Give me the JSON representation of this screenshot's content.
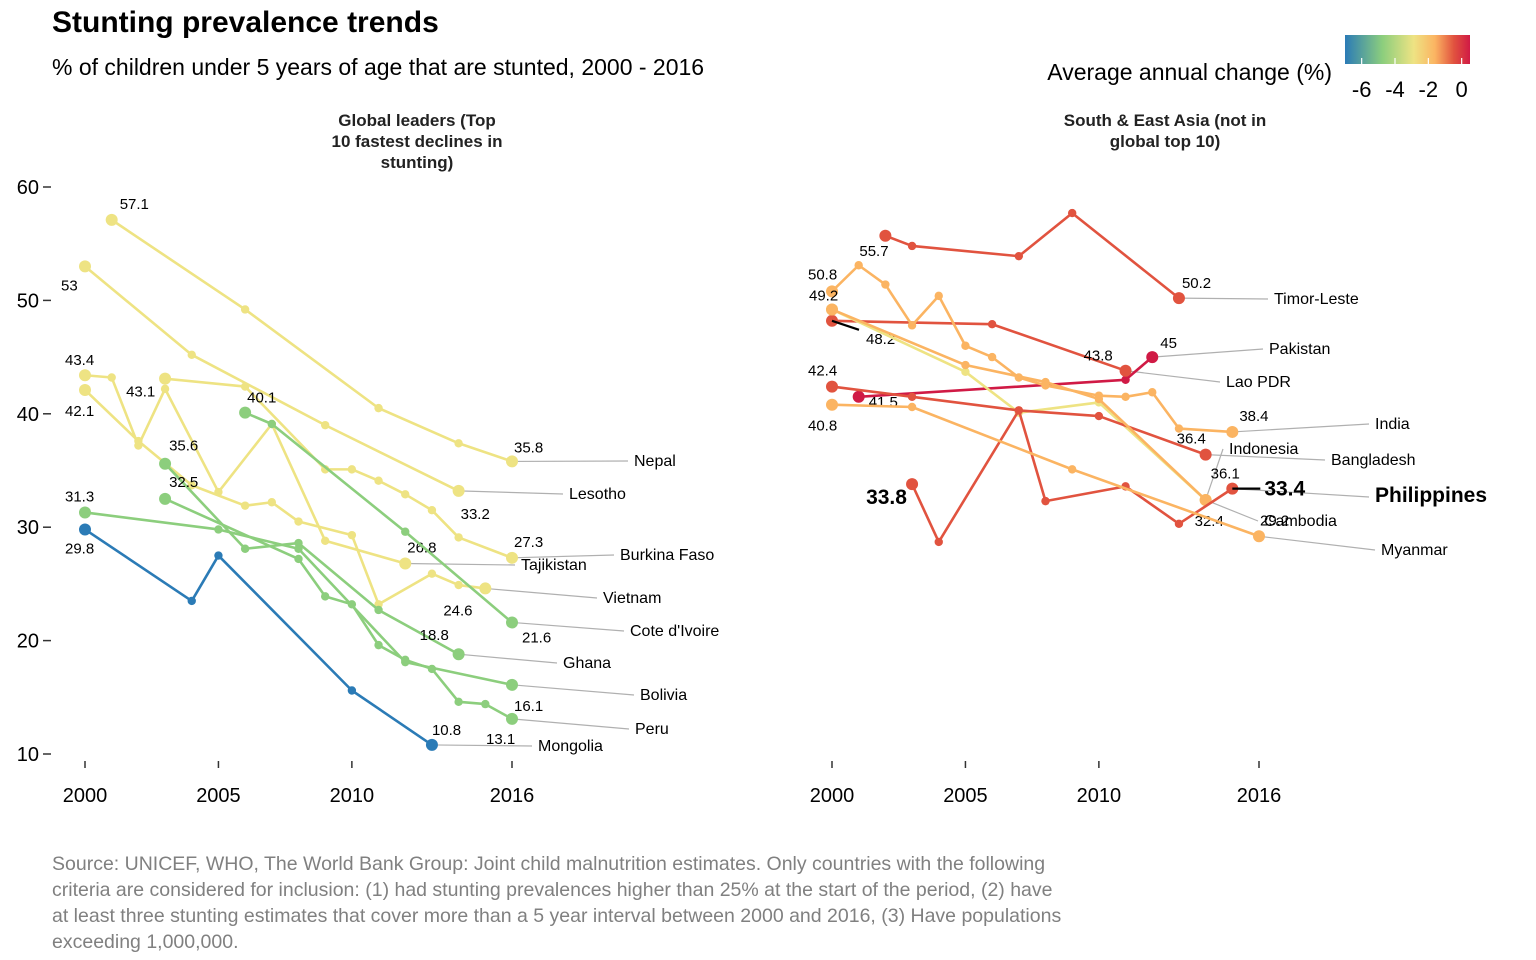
{
  "chart_data": {
    "type": "line",
    "title": "Stunting prevalence trends",
    "subtitle": "% of children under 5 years of age that are stunted, 2000 - 2016",
    "legend": {
      "title": "Average annual change (%)",
      "ticks": [
        "-6",
        "-4",
        "-2",
        "0"
      ],
      "range": [
        -7,
        0.5
      ],
      "placement": "top-right",
      "colors": [
        "#2B7BB6",
        "#8CCE7D",
        "#EEE383",
        "#FBB462",
        "#E1533F",
        "#D01A45"
      ]
    },
    "x_ticks": [
      "2000",
      "2005",
      "2010",
      "2016"
    ],
    "x_tick_values": [
      2000,
      2005,
      2010,
      2016
    ],
    "ylim": [
      10,
      60
    ],
    "y_ticks": [
      "10",
      "20",
      "30",
      "40",
      "50",
      "60"
    ],
    "panels": [
      {
        "title": "Global leaders (Top 10 fastest declines in stunting)",
        "title_lines": [
          "Global leaders (Top",
          "10 fastest declines in",
          "stunting)"
        ],
        "series": [
          {
            "name": "Nepal",
            "color": "#EEE383",
            "x": [
              2001,
              2006,
              2011,
              2014,
              2016
            ],
            "y": [
              57.1,
              49.2,
              40.5,
              37.4,
              35.8
            ],
            "start_label": "57.1",
            "end_label": "35.8"
          },
          {
            "name": "Lesotho",
            "color": "#EEE383",
            "x": [
              2000,
              2004,
              2009,
              2014
            ],
            "y": [
              53,
              45.2,
              39,
              33.2
            ],
            "start_label": "53",
            "end_label": "33.2"
          },
          {
            "name": "Burkina Faso",
            "color": "#EEE383",
            "x": [
              2003,
              2006,
              2009,
              2010,
              2011,
              2012,
              2013,
              2014,
              2016
            ],
            "y": [
              43.1,
              42.4,
              35.1,
              35.1,
              34.1,
              32.9,
              31.5,
              29.1,
              27.3
            ],
            "start_label": "43.1",
            "end_label": "27.3"
          },
          {
            "name": "Tajikistan",
            "color": "#EEE383",
            "x": [
              2000,
              2001,
              2002,
              2003,
              2005,
              2007,
              2009,
              2012
            ],
            "y": [
              43.4,
              43.2,
              37.2,
              42.2,
              33.1,
              39.1,
              28.8,
              26.8
            ],
            "start_label": "43.4",
            "end_label": "26.8"
          },
          {
            "name": "Vietnam",
            "color": "#EEE383",
            "x": [
              2000,
              2002,
              2004,
              2006,
              2007,
              2008,
              2010,
              2011,
              2013,
              2014,
              2015
            ],
            "y": [
              42.1,
              37.6,
              33.7,
              31.9,
              32.2,
              30.5,
              29.3,
              23.2,
              25.9,
              24.9,
              24.6
            ],
            "start_label": "42.1",
            "end_label": "24.6"
          },
          {
            "name": "Cote d'Ivoire",
            "color": "#8CCE7D",
            "x": [
              2006,
              2007,
              2012,
              2016
            ],
            "y": [
              40.1,
              39.1,
              29.6,
              21.6
            ],
            "start_label": "40.1",
            "end_label": "21.6"
          },
          {
            "name": "Ghana",
            "color": "#8CCE7D",
            "x": [
              2003,
              2006,
              2008,
              2011,
              2014
            ],
            "y": [
              35.6,
              28.1,
              28.6,
              22.7,
              18.8
            ],
            "start_label": "35.6",
            "end_label": "18.8"
          },
          {
            "name": "Bolivia",
            "color": "#8CCE7D",
            "x": [
              2000,
              2005,
              2008,
              2012,
              2016
            ],
            "y": [
              31.3,
              29.8,
              28.1,
              18.1,
              16.1
            ],
            "start_label": "31.3",
            "end_label": "16.1"
          },
          {
            "name": "Peru",
            "color": "#8CCE7D",
            "x": [
              2003,
              2008,
              2009,
              2010,
              2011,
              2012,
              2013,
              2014,
              2015,
              2016
            ],
            "y": [
              32.5,
              27.2,
              23.9,
              23.2,
              19.6,
              18.3,
              17.5,
              14.6,
              14.4,
              13.1
            ],
            "start_label": "32.5",
            "end_label": "13.1"
          },
          {
            "name": "Mongolia",
            "color": "#2B7BB6",
            "x": [
              2000,
              2004,
              2005,
              2010,
              2013
            ],
            "y": [
              29.8,
              23.5,
              27.5,
              15.6,
              10.8
            ],
            "start_label": "29.8",
            "end_label": "10.8"
          }
        ]
      },
      {
        "title": "South & East Asia (not in global top 10)",
        "title_lines": [
          "South & East Asia (not in",
          "global top 10)"
        ],
        "series": [
          {
            "name": "Timor-Leste",
            "color": "#E1533F",
            "x": [
              2002,
              2003,
              2007,
              2009,
              2013
            ],
            "y": [
              55.7,
              54.8,
              53.9,
              57.7,
              50.2
            ],
            "start_label": "55.7",
            "end_label": "50.2"
          },
          {
            "name": "Pakistan",
            "color": "#D01A45",
            "x": [
              2001,
              2011,
              2012
            ],
            "y": [
              41.5,
              43.0,
              45
            ],
            "start_label": "41.5",
            "end_label": "45"
          },
          {
            "name": "Lao PDR",
            "color": "#E1533F",
            "x": [
              2000,
              2006,
              2011
            ],
            "y": [
              48.2,
              47.9,
              43.8
            ],
            "start_label": "48.2",
            "end_label": "43.8"
          },
          {
            "name": "India",
            "color": "#FBB462",
            "x": [
              2000,
              2001,
              2002,
              2003,
              2004,
              2005,
              2006,
              2007,
              2008,
              2010,
              2011,
              2012,
              2013,
              2015
            ],
            "y": [
              50.8,
              53.1,
              51.4,
              47.8,
              50.4,
              46.0,
              45.0,
              43.2,
              42.5,
              41.6,
              41.5,
              41.9,
              38.7,
              38.4
            ],
            "start_label": "50.8",
            "end_label": "38.4"
          },
          {
            "name": "Indonesia",
            "color": "#EEE383",
            "x": [
              2000,
              2005,
              2007,
              2010,
              2014
            ],
            "y": [
              49.2,
              43.7,
              40.1,
              41.0,
              32.4
            ],
            "start_label": "49.2",
            "end_label": "32.4"
          },
          {
            "name": "Bangladesh",
            "color": "#E1533F",
            "x": [
              2000,
              2003,
              2007,
              2010,
              2014
            ],
            "y": [
              42.4,
              41.5,
              40.3,
              39.8,
              36.4
            ],
            "start_label": "42.4",
            "end_label": "36.4"
          },
          {
            "name": "Cambodia",
            "color": "#FBB462",
            "x": [
              2000,
              2005,
              2008,
              2010,
              2014
            ],
            "y": [
              49.2,
              44.3,
              42.8,
              41.3,
              32.4
            ],
            "start_label": "49.2",
            "end_label": "32.4"
          },
          {
            "name": "Philippines",
            "color": "#E1533F",
            "x": [
              2003,
              2004,
              2007,
              2008,
              2011,
              2013,
              2015
            ],
            "y": [
              33.8,
              28.7,
              40.3,
              32.3,
              33.6,
              30.3,
              33.4
            ],
            "start_label": "33.8",
            "end_label": "33.4",
            "highlight": true
          },
          {
            "name": "Myanmar",
            "color": "#FBB462",
            "x": [
              2000,
              2003,
              2009,
              2016
            ],
            "y": [
              40.8,
              40.6,
              35.1,
              29.2
            ],
            "start_label": "40.8",
            "end_label": "29.2"
          }
        ]
      }
    ],
    "extra_value_labels": [
      "36.1"
    ],
    "source": "Source: UNICEF, WHO, The World Bank Group: Joint child malnutrition estimates. Only countries with the following criteria are considered for inclusion: (1) had stunting prevalences higher than 25% at the start of the period, (2) have at least three stunting estimates that cover more than a 5 year interval between 2000 and 2016, (3) Have populations exceeding 1,000,000.",
    "source_lines": [
      "Source: UNICEF, WHO, The World Bank Group: Joint child malnutrition estimates. Only countries with the following",
      "criteria are considered for inclusion: (1) had stunting prevalences higher than 25% at the start of the period, (2) have",
      "at least three stunting estimates that cover more than a 5 year interval between 2000 and 2016, (3) Have populations",
      "exceeding 1,000,000."
    ]
  }
}
